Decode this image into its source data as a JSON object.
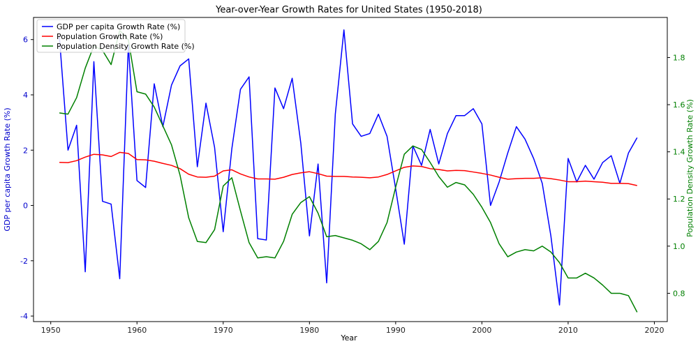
{
  "chart_data": {
    "type": "line",
    "title": "Year-over-Year Growth Rates for United States (1950-2018)",
    "xlabel": "Year",
    "ylabel_left": "GDP per capita Growth Rate (%)",
    "ylabel_right": "Population Density Growth Rate (%)",
    "xlim": [
      1948,
      2021.5
    ],
    "ylim_left": [
      -4.2,
      6.8
    ],
    "ylim_right": [
      0.68,
      1.97
    ],
    "x_ticks": [
      1950,
      1960,
      1970,
      1980,
      1990,
      2000,
      2010,
      2020
    ],
    "y_ticks_left": [
      -4,
      -2,
      0,
      2,
      4,
      6
    ],
    "y_ticks_right": [
      0.8,
      1.0,
      1.2,
      1.4,
      1.6,
      1.8
    ],
    "left_axis_color": "#0000cc",
    "right_axis_color": "#007f00",
    "legend_position": "top-left",
    "x": [
      1951,
      1952,
      1953,
      1954,
      1955,
      1956,
      1957,
      1958,
      1959,
      1960,
      1961,
      1962,
      1963,
      1964,
      1965,
      1966,
      1967,
      1968,
      1969,
      1970,
      1971,
      1972,
      1973,
      1974,
      1975,
      1976,
      1977,
      1978,
      1979,
      1980,
      1981,
      1982,
      1983,
      1984,
      1985,
      1986,
      1987,
      1988,
      1989,
      1990,
      1991,
      1992,
      1993,
      1994,
      1995,
      1996,
      1997,
      1998,
      1999,
      2000,
      2001,
      2002,
      2003,
      2004,
      2005,
      2006,
      2007,
      2008,
      2009,
      2010,
      2011,
      2012,
      2013,
      2014,
      2015,
      2016,
      2017,
      2018
    ],
    "series": [
      {
        "name": "GDP per capita Growth Rate (%)",
        "axis": "left",
        "color": "#0000ff",
        "values": [
          6.1,
          2.0,
          2.9,
          -2.4,
          5.2,
          0.15,
          0.05,
          -2.65,
          5.8,
          0.9,
          0.65,
          4.4,
          2.85,
          4.35,
          5.05,
          5.3,
          1.4,
          3.7,
          2.1,
          -0.95,
          2.05,
          4.2,
          4.65,
          -1.2,
          -1.25,
          4.25,
          3.5,
          4.6,
          2.25,
          -1.1,
          1.5,
          -2.8,
          3.3,
          6.35,
          2.95,
          2.5,
          2.6,
          3.3,
          2.5,
          0.6,
          -1.4,
          2.15,
          1.45,
          2.75,
          1.5,
          2.6,
          3.25,
          3.25,
          3.5,
          2.95,
          0.0,
          0.85,
          1.9,
          2.85,
          2.4,
          1.7,
          0.8,
          -1.1,
          -3.6,
          1.7,
          0.85,
          1.45,
          0.95,
          1.55,
          1.8,
          0.8,
          1.9,
          2.45
        ]
      },
      {
        "name": "Population Growth Rate (%)",
        "axis": "left",
        "color": "#ff0000",
        "values": [
          1.56,
          1.55,
          1.62,
          1.75,
          1.85,
          1.83,
          1.77,
          1.92,
          1.88,
          1.66,
          1.65,
          1.6,
          1.52,
          1.45,
          1.33,
          1.13,
          1.03,
          1.02,
          1.06,
          1.25,
          1.29,
          1.14,
          1.03,
          0.96,
          0.96,
          0.95,
          1.02,
          1.12,
          1.18,
          1.22,
          1.15,
          1.06,
          1.05,
          1.05,
          1.03,
          1.02,
          1.0,
          1.03,
          1.12,
          1.25,
          1.38,
          1.43,
          1.41,
          1.33,
          1.3,
          1.25,
          1.27,
          1.26,
          1.21,
          1.16,
          1.1,
          1.02,
          0.95,
          0.97,
          0.98,
          0.98,
          1.0,
          0.97,
          0.92,
          0.86,
          0.86,
          0.88,
          0.86,
          0.84,
          0.8,
          0.8,
          0.79,
          0.72
        ]
      },
      {
        "name": "Population Density Growth Rate (%)",
        "axis": "right",
        "color": "#008000",
        "values": [
          1.565,
          1.56,
          1.63,
          1.755,
          1.85,
          1.83,
          1.77,
          1.915,
          1.875,
          1.655,
          1.645,
          1.59,
          1.51,
          1.43,
          1.3,
          1.12,
          1.02,
          1.015,
          1.07,
          1.255,
          1.29,
          1.15,
          1.015,
          0.95,
          0.955,
          0.95,
          1.02,
          1.135,
          1.185,
          1.21,
          1.14,
          1.04,
          1.045,
          1.035,
          1.025,
          1.01,
          0.985,
          1.02,
          1.1,
          1.25,
          1.39,
          1.425,
          1.41,
          1.355,
          1.295,
          1.25,
          1.27,
          1.26,
          1.22,
          1.165,
          1.1,
          1.01,
          0.955,
          0.975,
          0.985,
          0.98,
          1.0,
          0.975,
          0.93,
          0.865,
          0.865,
          0.885,
          0.865,
          0.835,
          0.8,
          0.8,
          0.79,
          0.72
        ]
      }
    ]
  }
}
